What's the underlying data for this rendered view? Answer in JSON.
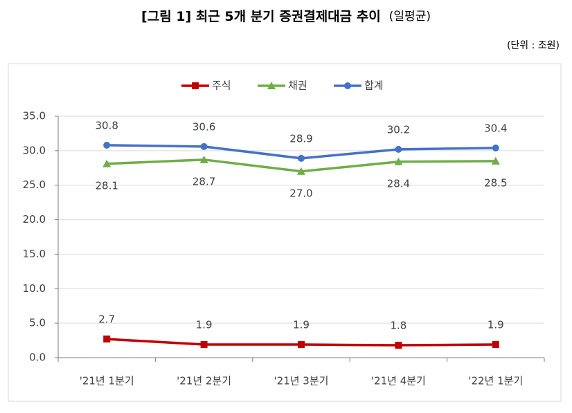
{
  "chart_data": {
    "type": "line",
    "title": "[그림 1] 최근 5개 분기 증권결제대금 추이",
    "title_note": "(일평균)",
    "unit_label": "(단위 : 조원)",
    "categories": [
      "'21년 1분기",
      "'21년 2분기",
      "'21년 3분기",
      "'21년 4분기",
      "'22년 1분기"
    ],
    "series": [
      {
        "name": "주식",
        "color": "#c00000",
        "marker": "square",
        "label_position": "above",
        "values": [
          2.7,
          1.9,
          1.9,
          1.8,
          1.9
        ],
        "value_labels": [
          "2.7",
          "1.9",
          "1.9",
          "1.8",
          "1.9"
        ]
      },
      {
        "name": "채권",
        "color": "#70ad47",
        "marker": "triangle",
        "label_position": "below",
        "values": [
          28.1,
          28.7,
          27.0,
          28.4,
          28.5
        ],
        "value_labels": [
          "28.1",
          "28.7",
          "27.0",
          "28.4",
          "28.5"
        ]
      },
      {
        "name": "합계",
        "color": "#4472c4",
        "marker": "circle",
        "label_position": "above",
        "values": [
          30.8,
          30.6,
          28.9,
          30.2,
          30.4
        ],
        "value_labels": [
          "30.8",
          "30.6",
          "28.9",
          "30.2",
          "30.4"
        ]
      }
    ],
    "ylim": [
      0,
      35
    ],
    "yticks": [
      {
        "value": 0,
        "label": "0.0"
      },
      {
        "value": 5,
        "label": "5.0"
      },
      {
        "value": 10,
        "label": "10.0"
      },
      {
        "value": 15,
        "label": "15.0"
      },
      {
        "value": 20,
        "label": "20.0"
      },
      {
        "value": 25,
        "label": "25.0"
      },
      {
        "value": 30,
        "label": "30.0"
      },
      {
        "value": 35,
        "label": "35.0"
      }
    ],
    "grid": true,
    "legend": "top"
  }
}
